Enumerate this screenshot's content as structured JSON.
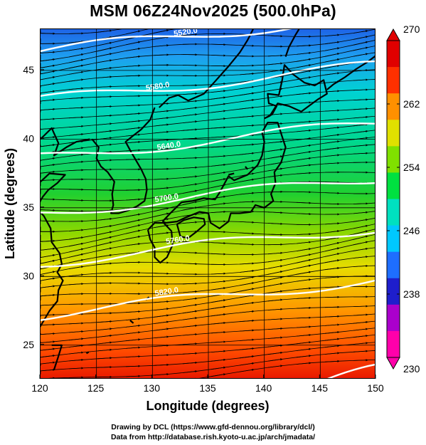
{
  "title": "MSM 06Z24Nov2025 (500.0hPa)",
  "map": {
    "x_label": "Longitude (degrees)",
    "y_label": "Latitude  (degrees)",
    "lon_range": [
      120,
      150
    ],
    "lat_range": [
      22.5,
      48
    ],
    "lon_ticks": [
      120,
      125,
      130,
      135,
      140,
      145,
      150
    ],
    "lat_ticks": [
      25,
      30,
      35,
      40,
      45
    ],
    "gridlines": true
  },
  "colorbar": {
    "min": 230,
    "max": 270,
    "ticks": [
      270,
      262,
      254,
      246,
      238,
      230
    ],
    "colors": [
      "#ff00aa",
      "#aa00cc",
      "#1e1ecc",
      "#1e6eff",
      "#00c8ff",
      "#00e0c0",
      "#00e040",
      "#80e000",
      "#e0e000",
      "#ff9000",
      "#ff3000",
      "#e00000"
    ]
  },
  "contours": [
    {
      "label": "5520.0"
    },
    {
      "label": "5580.0"
    },
    {
      "label": "5640.0"
    },
    {
      "label": "5700.0"
    },
    {
      "label": "5760.0"
    },
    {
      "label": "5820.0"
    }
  ],
  "footer": {
    "line1": "Drawing by DCL (https://www.gfd-dennou.org/library/dcl/)",
    "line2": "Data from http://database.rish.kyoto-u.ac.jp/arch/jmadata/"
  }
}
